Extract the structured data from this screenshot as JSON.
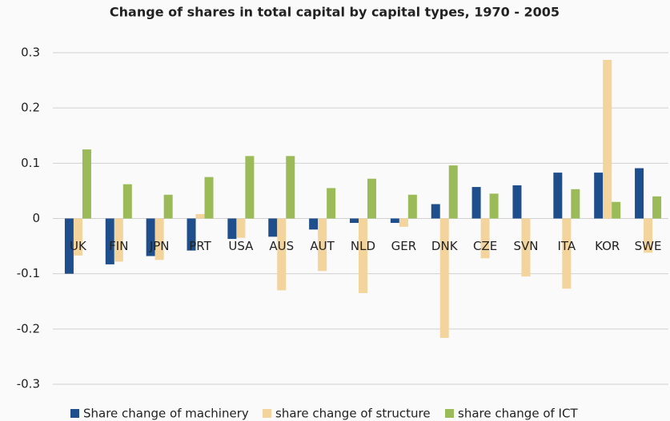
{
  "chart_data": {
    "type": "bar",
    "title": "Change of shares in total capital by capital types, 1970 - 2005",
    "categories": [
      "UK",
      "FIN",
      "JPN",
      "PRT",
      "USA",
      "AUS",
      "AUT",
      "NLD",
      "GER",
      "DNK",
      "CZE",
      "SVN",
      "ITA",
      "KOR",
      "SWE"
    ],
    "series": [
      {
        "name": "Share change of machinery",
        "color": "#1f4e8c",
        "values": [
          -0.1,
          -0.083,
          -0.068,
          -0.058,
          -0.037,
          -0.033,
          -0.02,
          -0.008,
          -0.008,
          0.026,
          0.057,
          0.06,
          0.083,
          0.083,
          0.091
        ]
      },
      {
        "name": "share change of structure",
        "color": "#f2d49c",
        "values": [
          -0.067,
          -0.078,
          -0.075,
          0.008,
          -0.035,
          -0.13,
          -0.095,
          -0.135,
          -0.015,
          -0.216,
          -0.072,
          -0.105,
          -0.127,
          0.287,
          -0.062
        ]
      },
      {
        "name": "share change of ICT",
        "color": "#9bbb59",
        "values": [
          0.125,
          0.062,
          0.043,
          0.075,
          0.113,
          0.113,
          0.055,
          0.072,
          0.043,
          0.096,
          0.045,
          0,
          0.053,
          0.03,
          0.04
        ]
      }
    ],
    "ylim": [
      -0.3,
      0.3
    ],
    "yticks": [
      -0.3,
      -0.2,
      -0.1,
      0,
      0.1,
      0.2,
      0.3
    ],
    "grid": true,
    "legend": "bottom"
  }
}
